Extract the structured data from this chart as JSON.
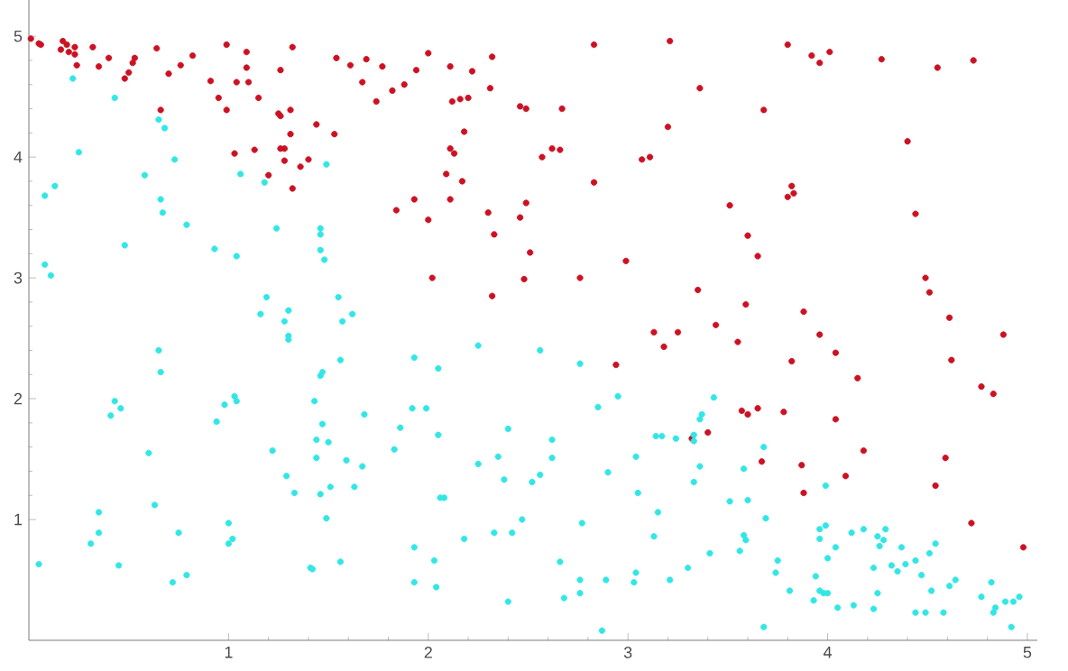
{
  "chart_data": {
    "type": "scatter",
    "marker": "circle",
    "grid": false,
    "xlim": [
      0,
      5.05
    ],
    "ylim": [
      0,
      5.3
    ],
    "xticks": [
      1,
      2,
      3,
      4,
      5
    ],
    "yticks": [
      1,
      2,
      3,
      4,
      5
    ],
    "series": [
      {
        "color": "#cc1122",
        "x": [
          0.01,
          0.05,
          0.06,
          0.17,
          0.19,
          0.16,
          0.2,
          0.23,
          0.23,
          0.24,
          0.32,
          0.35,
          0.4,
          0.48,
          0.5,
          0.52,
          0.53,
          0.64,
          0.66,
          0.7,
          0.76,
          0.82,
          0.91,
          0.95,
          0.99,
          0.99,
          1.04,
          1.09,
          1.09,
          1.1,
          1.15,
          1.03,
          1.13,
          1.2,
          1.26,
          1.32,
          1.25,
          1.26,
          1.31,
          1.31,
          1.26,
          1.28,
          1.28,
          1.36,
          1.4,
          1.32,
          1.44,
          1.53,
          1.54,
          1.61,
          1.69,
          1.77,
          1.67,
          1.74,
          1.82,
          1.88,
          1.94,
          2.0,
          2.11,
          2.22,
          2.32,
          2.31,
          2.12,
          2.16,
          2.2,
          2.46,
          2.49,
          2.67,
          2.18,
          2.11,
          2.13,
          2.57,
          2.62,
          2.66,
          2.83,
          3.21,
          3.2,
          3.07,
          3.11,
          2.83,
          2.09,
          2.17,
          1.93,
          2.11,
          1.84,
          2.0,
          2.3,
          2.49,
          2.46,
          2.33,
          2.51,
          2.99,
          2.02,
          2.48,
          2.76,
          3.35,
          2.32,
          3.13,
          3.25,
          3.36,
          3.8,
          3.92,
          3.96,
          4.01,
          4.27,
          4.55,
          4.73,
          3.68,
          4.4,
          3.82,
          3.8,
          3.83,
          3.51,
          4.44,
          3.6,
          3.65,
          3.59,
          4.49,
          4.51,
          3.88,
          3.44,
          3.96,
          4.61,
          4.88,
          3.55,
          3.82,
          4.04,
          4.62,
          4.15,
          4.77,
          4.83,
          3.57,
          3.6,
          3.65,
          3.78,
          4.04,
          3.32,
          3.4,
          4.18,
          3.67,
          3.87,
          4.59,
          4.09,
          4.54,
          3.88,
          4.72,
          4.98,
          3.18,
          2.94
        ],
        "values": [
          4.98,
          4.94,
          4.93,
          4.96,
          4.93,
          4.89,
          4.87,
          4.91,
          4.85,
          4.76,
          4.91,
          4.75,
          4.82,
          4.65,
          4.7,
          4.78,
          4.82,
          4.9,
          4.39,
          4.69,
          4.76,
          4.84,
          4.63,
          4.49,
          4.93,
          4.39,
          4.62,
          4.87,
          4.74,
          4.62,
          4.49,
          4.03,
          4.06,
          3.85,
          4.72,
          4.91,
          4.36,
          4.34,
          4.39,
          4.19,
          4.07,
          4.07,
          3.97,
          3.92,
          3.98,
          3.74,
          4.27,
          4.19,
          4.82,
          4.76,
          4.81,
          4.75,
          4.62,
          4.46,
          4.55,
          4.6,
          4.72,
          4.86,
          4.75,
          4.71,
          4.83,
          4.57,
          4.46,
          4.48,
          4.49,
          4.42,
          4.4,
          4.4,
          4.21,
          4.07,
          4.03,
          4.0,
          4.07,
          4.06,
          4.93,
          4.96,
          4.25,
          3.98,
          4.0,
          3.79,
          3.86,
          3.8,
          3.65,
          3.65,
          3.56,
          3.48,
          3.54,
          3.62,
          3.5,
          3.36,
          3.21,
          3.14,
          3.0,
          2.99,
          3.0,
          2.9,
          2.85,
          2.55,
          2.55,
          4.57,
          4.93,
          4.84,
          4.78,
          4.87,
          4.81,
          4.74,
          4.8,
          4.39,
          4.13,
          3.76,
          3.67,
          3.7,
          3.6,
          3.53,
          3.35,
          3.18,
          2.78,
          3.0,
          2.88,
          2.72,
          2.61,
          2.53,
          2.67,
          2.53,
          2.47,
          2.31,
          2.38,
          2.32,
          2.17,
          2.1,
          2.04,
          1.9,
          1.87,
          1.92,
          1.89,
          1.83,
          1.67,
          1.72,
          1.57,
          1.48,
          1.45,
          1.51,
          1.36,
          1.28,
          1.22,
          0.97,
          0.77,
          2.43,
          2.28
        ]
      },
      {
        "color": "#33e6e6",
        "x": [
          0.22,
          0.43,
          0.65,
          0.68,
          0.25,
          0.73,
          1.06,
          1.18,
          1.49,
          0.13,
          0.08,
          0.58,
          0.66,
          0.67,
          0.79,
          0.48,
          0.93,
          1.04,
          1.24,
          1.46,
          1.46,
          1.46,
          1.48,
          0.08,
          0.11,
          1.19,
          1.16,
          1.3,
          1.28,
          1.3,
          1.55,
          1.62,
          1.57,
          0.05,
          0.31,
          0.35,
          0.35,
          0.45,
          0.41,
          0.43,
          0.46,
          0.65,
          0.66,
          0.6,
          0.63,
          0.75,
          0.72,
          0.79,
          0.94,
          0.98,
          1.03,
          1.04,
          1.0,
          1.0,
          1.02,
          1.22,
          1.3,
          1.29,
          1.33,
          1.43,
          1.44,
          1.44,
          1.46,
          1.47,
          1.47,
          1.5,
          1.46,
          1.51,
          1.49,
          1.41,
          1.42,
          1.56,
          1.56,
          1.59,
          1.63,
          1.67,
          1.93,
          2.05,
          2.25,
          2.56,
          2.76,
          1.68,
          1.86,
          1.92,
          1.99,
          1.83,
          2.05,
          2.06,
          2.08,
          2.25,
          2.35,
          2.4,
          2.38,
          2.52,
          2.56,
          2.62,
          2.62,
          2.85,
          2.95,
          2.9,
          3.04,
          3.05,
          3.14,
          3.17,
          3.24,
          3.33,
          3.36,
          3.36,
          3.33,
          3.15,
          3.13,
          2.77,
          2.47,
          2.33,
          2.42,
          2.18,
          1.93,
          2.03,
          1.93,
          2.04,
          2.4,
          2.66,
          2.76,
          2.76,
          2.68,
          2.89,
          3.03,
          3.04,
          3.21,
          3.3,
          2.87,
          3.43,
          3.37,
          3.33,
          3.68,
          3.58,
          3.6,
          3.51,
          3.69,
          3.99,
          3.58,
          3.59,
          3.56,
          3.41,
          3.75,
          3.74,
          3.81,
          3.68,
          3.96,
          3.99,
          3.96,
          4.04,
          4.0,
          3.94,
          3.96,
          3.98,
          4.0,
          3.93,
          4.05,
          4.12,
          4.18,
          4.25,
          4.28,
          4.29,
          4.26,
          4.37,
          4.23,
          4.32,
          4.35,
          4.39,
          4.44,
          4.47,
          4.51,
          4.54,
          4.25,
          4.13,
          4.23,
          4.52,
          4.61,
          4.64,
          4.44,
          4.49,
          4.58,
          4.77,
          4.82,
          4.84,
          4.83,
          4.89,
          4.93,
          4.96,
          4.92
        ],
        "values": [
          4.65,
          4.49,
          4.31,
          4.24,
          4.04,
          3.98,
          3.86,
          3.79,
          3.94,
          3.76,
          3.68,
          3.85,
          3.65,
          3.54,
          3.44,
          3.27,
          3.24,
          3.18,
          3.41,
          3.41,
          3.36,
          3.23,
          3.15,
          3.11,
          3.02,
          2.84,
          2.7,
          2.73,
          2.64,
          2.52,
          2.84,
          2.7,
          2.64,
          0.63,
          0.8,
          0.89,
          1.06,
          0.62,
          1.86,
          1.98,
          1.92,
          2.4,
          2.22,
          1.55,
          1.12,
          0.89,
          0.48,
          0.54,
          1.81,
          1.95,
          2.02,
          1.98,
          0.97,
          0.8,
          0.84,
          1.57,
          2.49,
          1.36,
          1.22,
          1.98,
          1.66,
          1.51,
          2.19,
          2.22,
          1.79,
          1.64,
          1.21,
          1.27,
          1.01,
          0.6,
          0.59,
          0.65,
          2.32,
          1.49,
          1.27,
          1.44,
          2.34,
          2.25,
          2.44,
          2.4,
          2.29,
          1.87,
          1.76,
          1.92,
          1.92,
          1.58,
          1.7,
          1.18,
          1.18,
          1.46,
          1.52,
          1.75,
          1.33,
          1.31,
          1.37,
          1.66,
          1.51,
          1.93,
          2.02,
          1.39,
          1.52,
          1.22,
          1.69,
          1.69,
          1.67,
          1.7,
          1.83,
          1.44,
          1.31,
          1.06,
          0.86,
          0.97,
          1.0,
          0.89,
          0.89,
          0.84,
          0.77,
          0.66,
          0.48,
          0.44,
          0.32,
          0.65,
          0.5,
          0.39,
          0.35,
          0.5,
          0.48,
          0.56,
          0.5,
          0.6,
          0.08,
          2.01,
          1.87,
          1.65,
          1.6,
          1.42,
          1.16,
          1.15,
          1.01,
          1.28,
          0.87,
          0.83,
          0.74,
          0.72,
          0.66,
          0.56,
          0.41,
          0.11,
          0.92,
          0.95,
          0.84,
          0.77,
          0.68,
          0.53,
          0.41,
          0.39,
          0.39,
          0.33,
          0.27,
          0.89,
          0.92,
          0.86,
          0.83,
          0.92,
          0.78,
          0.77,
          0.6,
          0.62,
          0.57,
          0.63,
          0.66,
          0.54,
          0.72,
          0.8,
          0.39,
          0.29,
          0.26,
          0.41,
          0.45,
          0.5,
          0.23,
          0.23,
          0.23,
          0.36,
          0.48,
          0.27,
          0.23,
          0.32,
          0.32,
          0.36,
          0.11
        ]
      }
    ]
  }
}
